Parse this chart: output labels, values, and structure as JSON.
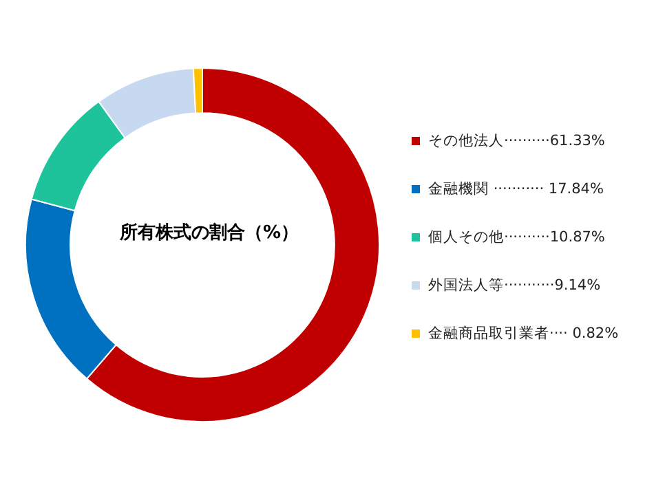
{
  "chart_data": {
    "type": "donut",
    "title": "所有株式の割合（%）",
    "categories": [
      "その他法人",
      "金融機関",
      "個人その他",
      "外国法人等",
      "金融商品取引業者"
    ],
    "values": [
      61.33,
      17.84,
      10.87,
      9.14,
      0.82
    ],
    "colors": [
      "#c00000",
      "#0070c0",
      "#1fc39b",
      "#c6d9f0",
      "#ffc000"
    ],
    "value_labels": [
      "··········61.33%",
      " ··········· 17.84%",
      "··········10.87%",
      "···········9.14%",
      "···· 0.82%"
    ],
    "legend": "right"
  }
}
